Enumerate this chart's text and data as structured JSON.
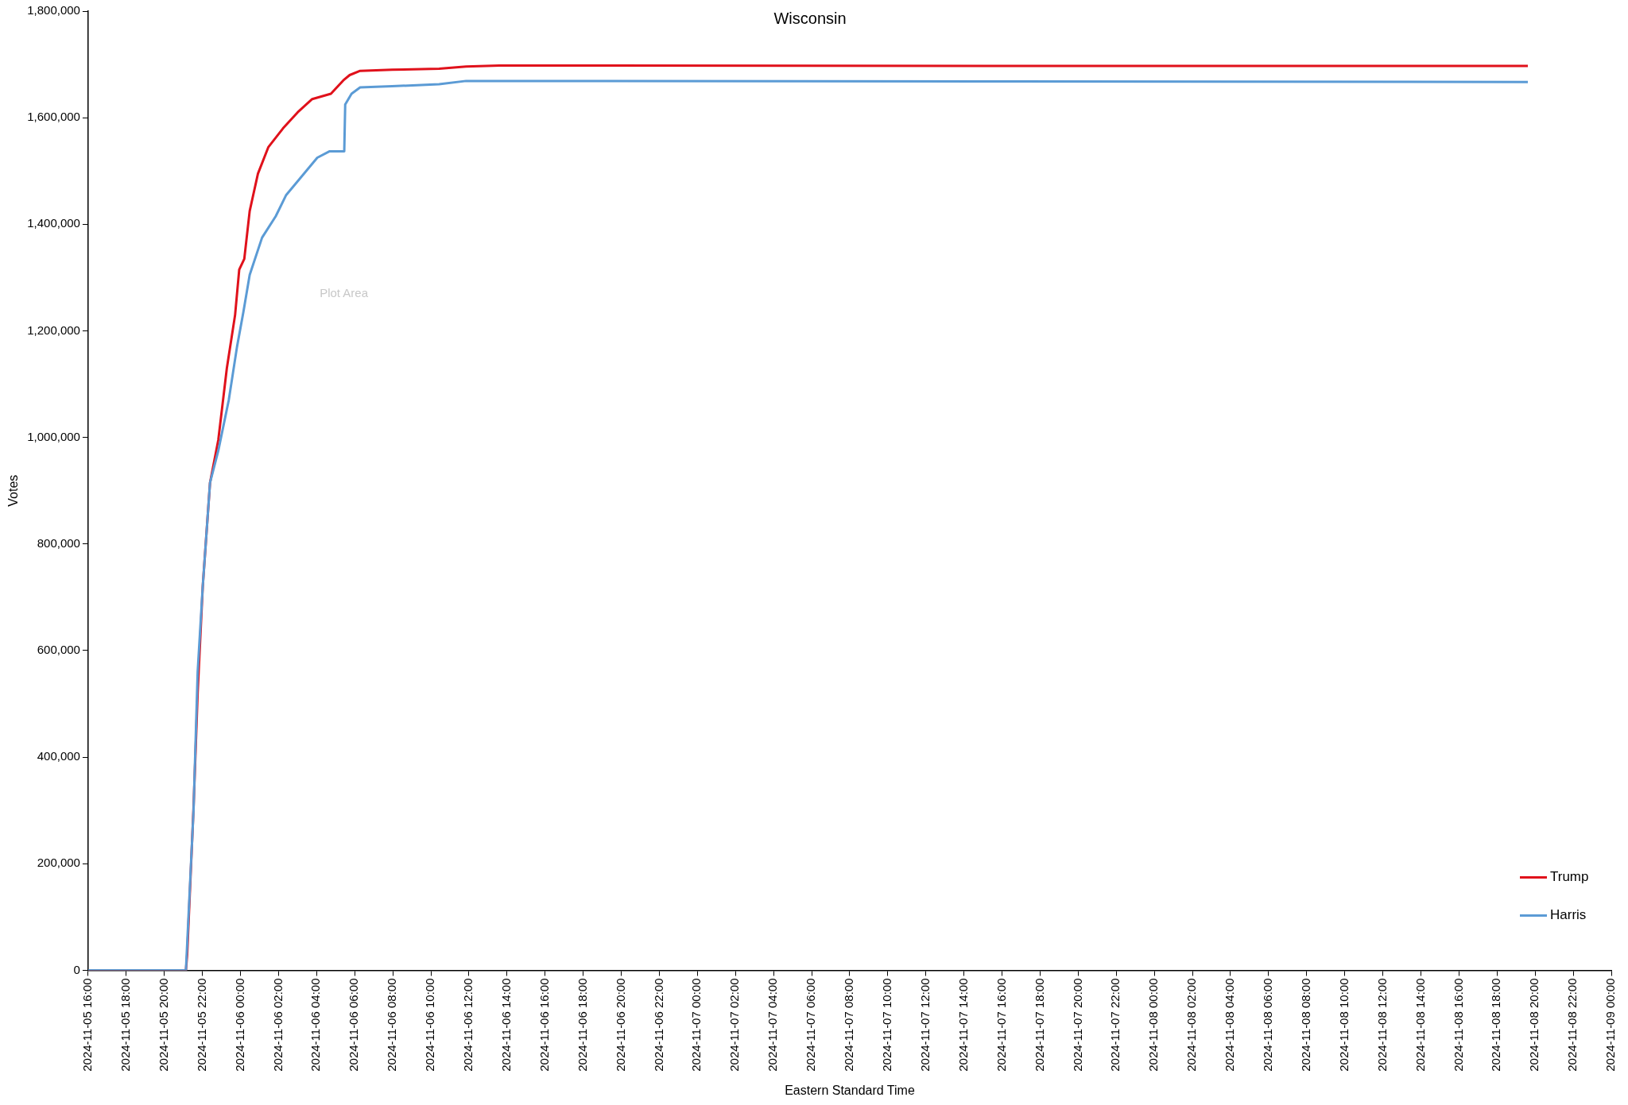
{
  "chart_data": {
    "type": "line",
    "title": "Wisconsin",
    "xlabel": "Eastern Standard Time",
    "ylabel": "Votes",
    "annotations": [
      "Plot Area"
    ],
    "series": [
      {
        "name": "Trump",
        "color": "#e0111b",
        "x": [
          "2024-11-05T16:00",
          "2024-11-05T21:08",
          "2024-11-05T21:12",
          "2024-11-05T21:32",
          "2024-11-05T21:45",
          "2024-11-05T22:01",
          "2024-11-05T22:24",
          "2024-11-05T22:50",
          "2024-11-05T23:17",
          "2024-11-05T23:43",
          "2024-11-05T23:56",
          "2024-11-06T00:12",
          "2024-11-06T00:29",
          "2024-11-06T00:55",
          "2024-11-06T01:28",
          "2024-11-06T02:14",
          "2024-11-06T03:00",
          "2024-11-06T03:46",
          "2024-11-06T04:45",
          "2024-11-06T05:24",
          "2024-11-06T05:44",
          "2024-11-06T06:17",
          "2024-11-06T07:58",
          "2024-11-06T10:26",
          "2024-11-06T11:51",
          "2024-11-06T13:36",
          "2024-11-07T15:04",
          "2024-11-08T19:37"
        ],
        "values": [
          0,
          0,
          30000,
          305000,
          520000,
          720000,
          915000,
          995000,
          1130000,
          1230000,
          1315000,
          1335000,
          1425000,
          1495000,
          1545000,
          1580000,
          1610000,
          1635000,
          1645000,
          1670000,
          1680000,
          1688000,
          1690000,
          1692000,
          1696000,
          1698000,
          1697000,
          1697000
        ]
      },
      {
        "name": "Harris",
        "color": "#5b9bd5",
        "x": [
          "2024-11-05T16:00",
          "2024-11-05T21:08",
          "2024-11-05T21:32",
          "2024-11-05T21:45",
          "2024-11-05T22:01",
          "2024-11-05T22:24",
          "2024-11-05T22:50",
          "2024-11-05T23:23",
          "2024-11-05T23:49",
          "2024-11-06T00:09",
          "2024-11-06T00:29",
          "2024-11-06T01:08",
          "2024-11-06T01:51",
          "2024-11-06T02:24",
          "2024-11-06T03:13",
          "2024-11-06T04:02",
          "2024-11-06T04:41",
          "2024-11-06T05:27",
          "2024-11-06T05:30",
          "2024-11-06T05:50",
          "2024-11-06T06:17",
          "2024-11-06T07:58",
          "2024-11-06T10:26",
          "2024-11-06T11:51",
          "2024-11-07T15:04",
          "2024-11-08T19:37"
        ],
        "values": [
          0,
          0,
          300000,
          560000,
          720000,
          915000,
          975000,
          1070000,
          1170000,
          1235000,
          1305000,
          1375000,
          1415000,
          1455000,
          1490000,
          1525000,
          1537000,
          1537000,
          1625000,
          1645000,
          1657000,
          1659000,
          1663000,
          1669000,
          1668000,
          1667000
        ]
      }
    ],
    "xlim": [
      "2024-11-05T16:00",
      "2024-11-09T00:00"
    ],
    "xticks": [
      {
        "value": "2024-11-05T16:00",
        "label": "2024-11-05 16:00"
      },
      {
        "value": "2024-11-05T18:00",
        "label": "2024-11-05 18:00"
      },
      {
        "value": "2024-11-05T20:00",
        "label": "2024-11-05 20:00"
      },
      {
        "value": "2024-11-05T22:00",
        "label": "2024-11-05 22:00"
      },
      {
        "value": "2024-11-06T00:00",
        "label": "2024-11-06 00:00"
      },
      {
        "value": "2024-11-06T02:00",
        "label": "2024-11-06 02:00"
      },
      {
        "value": "2024-11-06T04:00",
        "label": "2024-11-06 04:00"
      },
      {
        "value": "2024-11-06T06:00",
        "label": "2024-11-06 06:00"
      },
      {
        "value": "2024-11-06T08:00",
        "label": "2024-11-06 08:00"
      },
      {
        "value": "2024-11-06T10:00",
        "label": "2024-11-06 10:00"
      },
      {
        "value": "2024-11-06T12:00",
        "label": "2024-11-06 12:00"
      },
      {
        "value": "2024-11-06T14:00",
        "label": "2024-11-06 14:00"
      },
      {
        "value": "2024-11-06T16:00",
        "label": "2024-11-06 16:00"
      },
      {
        "value": "2024-11-06T18:00",
        "label": "2024-11-06 18:00"
      },
      {
        "value": "2024-11-06T20:00",
        "label": "2024-11-06 20:00"
      },
      {
        "value": "2024-11-06T22:00",
        "label": "2024-11-06 22:00"
      },
      {
        "value": "2024-11-07T00:00",
        "label": "2024-11-07 00:00"
      },
      {
        "value": "2024-11-07T02:00",
        "label": "2024-11-07 02:00"
      },
      {
        "value": "2024-11-07T04:00",
        "label": "2024-11-07 04:00"
      },
      {
        "value": "2024-11-07T06:00",
        "label": "2024-11-07 06:00"
      },
      {
        "value": "2024-11-07T08:00",
        "label": "2024-11-07 08:00"
      },
      {
        "value": "2024-11-07T10:00",
        "label": "2024-11-07 10:00"
      },
      {
        "value": "2024-11-07T12:00",
        "label": "2024-11-07 12:00"
      },
      {
        "value": "2024-11-07T14:00",
        "label": "2024-11-07 14:00"
      },
      {
        "value": "2024-11-07T16:00",
        "label": "2024-11-07 16:00"
      },
      {
        "value": "2024-11-07T18:00",
        "label": "2024-11-07 18:00"
      },
      {
        "value": "2024-11-07T20:00",
        "label": "2024-11-07 20:00"
      },
      {
        "value": "2024-11-07T22:00",
        "label": "2024-11-07 22:00"
      },
      {
        "value": "2024-11-08T00:00",
        "label": "2024-11-08 00:00"
      },
      {
        "value": "2024-11-08T02:00",
        "label": "2024-11-08 02:00"
      },
      {
        "value": "2024-11-08T04:00",
        "label": "2024-11-08 04:00"
      },
      {
        "value": "2024-11-08T06:00",
        "label": "2024-11-08 06:00"
      },
      {
        "value": "2024-11-08T08:00",
        "label": "2024-11-08 08:00"
      },
      {
        "value": "2024-11-08T10:00",
        "label": "2024-11-08 10:00"
      },
      {
        "value": "2024-11-08T12:00",
        "label": "2024-11-08 12:00"
      },
      {
        "value": "2024-11-08T14:00",
        "label": "2024-11-08 14:00"
      },
      {
        "value": "2024-11-08T16:00",
        "label": "2024-11-08 16:00"
      },
      {
        "value": "2024-11-08T18:00",
        "label": "2024-11-08 18:00"
      },
      {
        "value": "2024-11-08T20:00",
        "label": "2024-11-08 20:00"
      },
      {
        "value": "2024-11-08T22:00",
        "label": "2024-11-08 22:00"
      },
      {
        "value": "2024-11-09T00:00",
        "label": "2024-11-09 00:00"
      }
    ],
    "ylim": [
      0,
      1800000
    ],
    "yticks": [
      {
        "value": 0,
        "label": "0"
      },
      {
        "value": 200000,
        "label": "200,000"
      },
      {
        "value": 400000,
        "label": "400,000"
      },
      {
        "value": 600000,
        "label": "600,000"
      },
      {
        "value": 800000,
        "label": "800,000"
      },
      {
        "value": 1000000,
        "label": "1,000,000"
      },
      {
        "value": 1200000,
        "label": "1,200,000"
      },
      {
        "value": 1400000,
        "label": "1,400,000"
      },
      {
        "value": 1600000,
        "label": "1,600,000"
      },
      {
        "value": 1800000,
        "label": "1,800,000"
      }
    ],
    "grid": false,
    "legend": "bottom right",
    "marker": "none",
    "line_style": "solid"
  }
}
